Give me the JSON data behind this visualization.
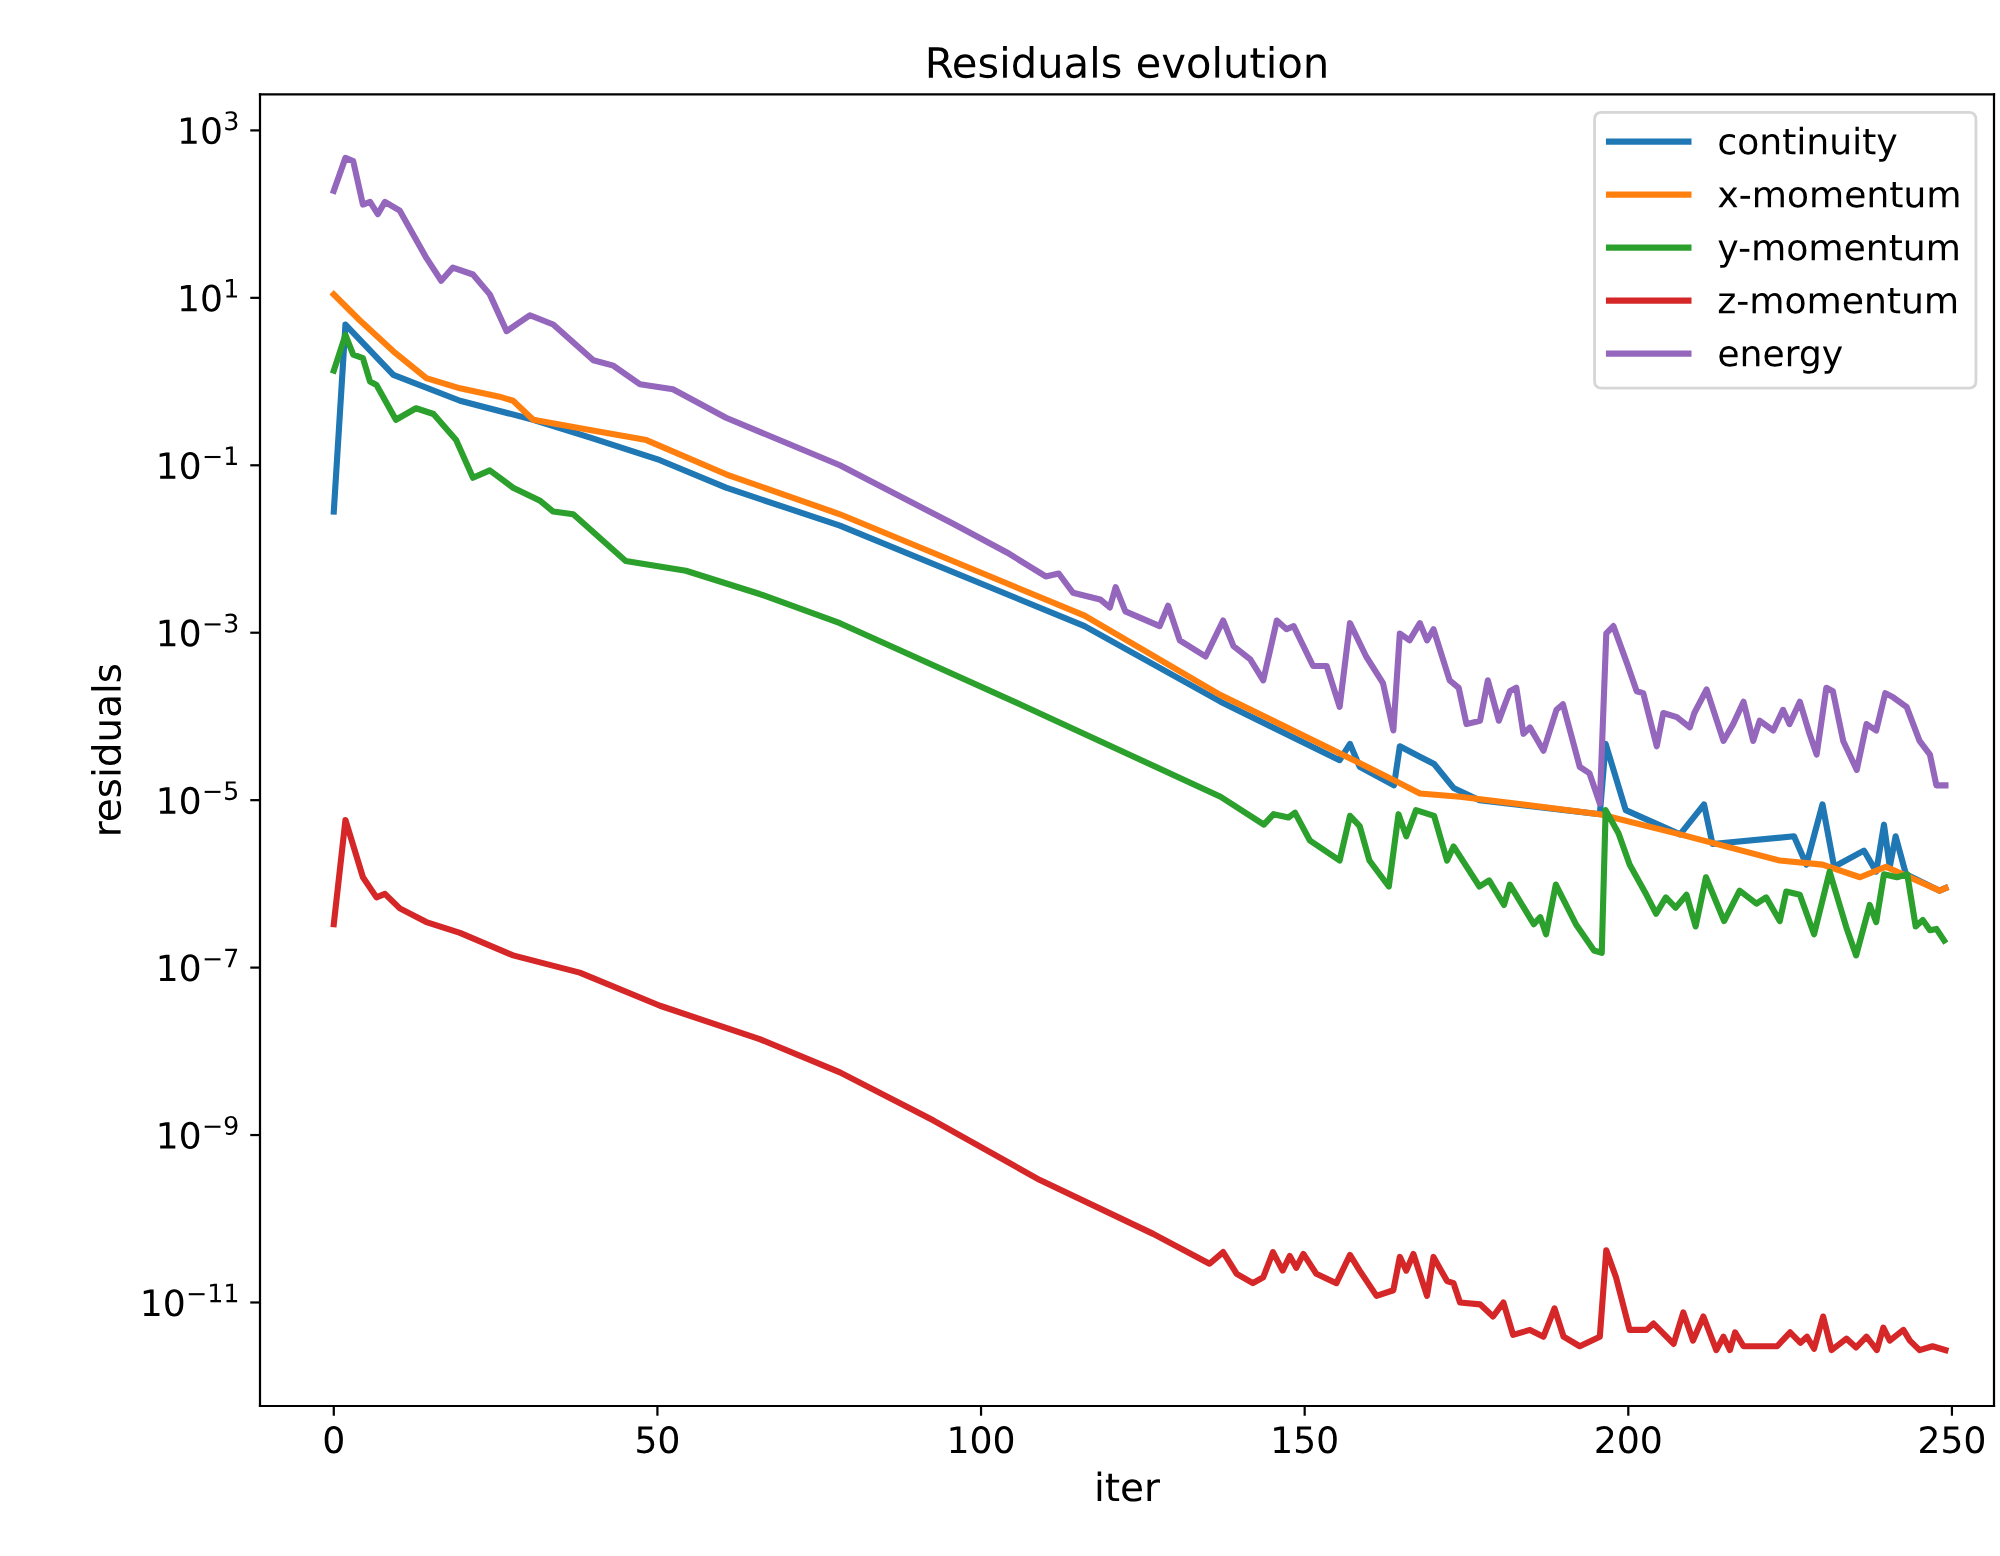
{
  "chart_data": {
    "type": "line",
    "title": "Residuals evolution",
    "xlabel": "iter",
    "ylabel": "residuals",
    "log": "y",
    "legend": "top right",
    "grid": false,
    "xlim": [
      -11.4,
      256.5
    ],
    "xticks": [
      0,
      50,
      100,
      150,
      200,
      250
    ],
    "ylim": [
      5.8e-13,
      2700
    ],
    "yticks": [
      {
        "value": 1000,
        "label": "10$^{3}$"
      },
      {
        "value": 10,
        "label": "10$^{1}$"
      },
      {
        "value": 0.1,
        "label": "10$^{−1}$"
      },
      {
        "value": 0.001,
        "label": "10$^{−3}$"
      },
      {
        "value": 1e-05,
        "label": "10$^{−5}$"
      },
      {
        "value": 1e-07,
        "label": "10$^{−7}$"
      },
      {
        "value": 1e-09,
        "label": "10$^{−9}$"
      },
      {
        "value": 1e-11,
        "label": "10$^{−11}$"
      }
    ],
    "series": [
      {
        "name": "continuity",
        "color": "#1f77b4",
        "x": [
          0,
          1.8,
          9.2,
          19.5,
          30.8,
          40,
          50.4,
          60.6,
          78.2,
          116,
          137,
          155.4,
          157,
          158.5,
          163.8,
          164.7,
          167.8,
          170,
          173,
          177,
          195.6,
          196.5,
          199.6,
          208,
          211.7,
          213,
          225.6,
          227.5,
          230,
          231.8,
          236.4,
          238.3,
          239.5,
          240.4,
          241.3,
          242.9,
          248.1,
          249
        ],
        "values": [
          0.028,
          4.8,
          1.2,
          0.59,
          0.35,
          0.21,
          0.115,
          0.054,
          0.019,
          0.0012,
          0.00015,
          3e-05,
          4.7e-05,
          2.5e-05,
          1.5e-05,
          4.4e-05,
          3.3e-05,
          2.7e-05,
          1.4e-05,
          1e-05,
          6.8e-06,
          4.7e-05,
          7.6e-06,
          3.9e-06,
          8.9e-06,
          3e-06,
          3.7e-06,
          1.7e-06,
          8.9e-06,
          1.6e-06,
          2.5e-06,
          1.4e-06,
          5.1e-06,
          1.6e-06,
          3.7e-06,
          1.3e-06,
          8.3e-07,
          8.9e-07
        ]
      },
      {
        "name": "x-momentum",
        "color": "#ff7f0e",
        "x": [
          0,
          4,
          9.2,
          14.3,
          19.5,
          25.6,
          27.7,
          30.8,
          40,
          48.3,
          60.6,
          78.2,
          116,
          137,
          157.6,
          164,
          167.8,
          174,
          195.6,
          208,
          223.4,
          230,
          235.8,
          239.8,
          248.1,
          249
        ],
        "values": [
          11,
          5.4,
          2.3,
          1.1,
          0.83,
          0.66,
          0.59,
          0.35,
          0.26,
          0.2,
          0.078,
          0.026,
          0.0016,
          0.00018,
          3e-05,
          1.7e-05,
          1.2e-05,
          1.1e-05,
          6.8e-06,
          3.9e-06,
          1.9e-06,
          1.7e-06,
          1.2e-06,
          1.6e-06,
          8.3e-07,
          8.9e-07
        ]
      },
      {
        "name": "y-momentum",
        "color": "#2ca02c",
        "x": [
          0,
          1.8,
          3,
          4.5,
          5.6,
          6.6,
          9.6,
          12.7,
          15.4,
          18.9,
          21.5,
          24.1,
          27.7,
          31.8,
          33.9,
          37,
          45.1,
          54.4,
          65.8,
          78.2,
          106,
          137,
          143.7,
          145.2,
          147.5,
          148.5,
          150.8,
          155.4,
          157,
          158.5,
          160,
          163,
          164.5,
          165.7,
          167.2,
          170,
          172,
          173,
          177,
          178.5,
          180.8,
          181.7,
          185.4,
          186.4,
          187.3,
          188.8,
          191.9,
          194.7,
          195.9,
          196.5,
          198.5,
          200.2,
          202.8,
          204.3,
          205.8,
          207.3,
          209,
          210.4,
          212,
          214.8,
          217.2,
          219.8,
          221.3,
          223.4,
          224.4,
          226.5,
          228.7,
          231.1,
          233.7,
          235.2,
          237.3,
          238.3,
          239.5,
          241.5,
          243.1,
          244.4,
          245.5,
          246.6,
          247.6,
          248.8
        ],
        "values": [
          1.35,
          3.6,
          2.1,
          1.9,
          1.0,
          0.91,
          0.35,
          0.48,
          0.41,
          0.2,
          0.071,
          0.087,
          0.054,
          0.038,
          0.028,
          0.026,
          0.0072,
          0.0055,
          0.0029,
          0.0013,
          0.00014,
          1.1e-05,
          5.1e-06,
          6.8e-06,
          6.2e-06,
          7.1e-06,
          3.3e-06,
          1.9e-06,
          6.5e-06,
          4.9e-06,
          1.9e-06,
          9.3e-07,
          6.8e-06,
          3.7e-06,
          7.6e-06,
          6.5e-06,
          1.9e-06,
          2.8e-06,
          9.3e-07,
          1.1e-06,
          5.6e-07,
          9.8e-07,
          3.3e-07,
          4e-07,
          2.5e-07,
          9.8e-07,
          3.3e-07,
          1.6e-07,
          1.5e-07,
          7.6e-06,
          4e-06,
          1.7e-06,
          7.4e-07,
          4.4e-07,
          6.9e-07,
          5.2e-07,
          7.4e-07,
          3.1e-07,
          1.2e-06,
          3.6e-07,
          8.3e-07,
          5.8e-07,
          6.9e-07,
          3.6e-07,
          8.1e-07,
          7.4e-07,
          2.5e-07,
          1.4e-06,
          3e-07,
          1.4e-07,
          5.6e-07,
          3.5e-07,
          1.3e-06,
          1.2e-06,
          1.3e-06,
          3.1e-07,
          3.7e-07,
          2.8e-07,
          2.9e-07,
          2.1e-07
        ]
      },
      {
        "name": "z-momentum",
        "color": "#d62728",
        "x": [
          0,
          1.8,
          4.5,
          6.6,
          7.9,
          10.2,
          14.3,
          19.5,
          27.7,
          38,
          50.4,
          65.8,
          78.2,
          92.6,
          109.1,
          126.6,
          135.3,
          137.4,
          139.5,
          142,
          143.6,
          145.1,
          146.6,
          147.7,
          148.7,
          149.8,
          151.8,
          154.9,
          157,
          158.5,
          161.1,
          163.7,
          164.7,
          165.7,
          166.8,
          168.9,
          169.9,
          172,
          173,
          174,
          177.1,
          179.1,
          180.7,
          182.2,
          184.8,
          186.9,
          188.6,
          190,
          192.5,
          195.6,
          196.6,
          198.1,
          200.2,
          202.8,
          203.9,
          207,
          208.5,
          210,
          211.6,
          213.6,
          214.7,
          215.7,
          216.5,
          217.8,
          223,
          225,
          226.6,
          227.6,
          228.7,
          230.1,
          231.4,
          233.7,
          235.2,
          236.8,
          238.4,
          239.4,
          240.4,
          242.5,
          243.5,
          245,
          247,
          249
        ],
        "values": [
          3.3e-07,
          5.8e-06,
          1.2e-06,
          6.9e-07,
          7.6e-07,
          5.1e-07,
          3.5e-07,
          2.6e-07,
          1.4e-07,
          8.7e-08,
          3.5e-08,
          1.4e-08,
          5.6e-09,
          1.5e-09,
          2.9e-10,
          6.6e-11,
          2.9e-11,
          4e-11,
          2.2e-11,
          1.7e-11,
          2e-11,
          4e-11,
          2.4e-11,
          3.6e-11,
          2.6e-11,
          3.8e-11,
          2.2e-11,
          1.7e-11,
          3.7e-11,
          2.4e-11,
          1.2e-11,
          1.4e-11,
          3.5e-11,
          2.4e-11,
          3.8e-11,
          1.2e-11,
          3.5e-11,
          1.8e-11,
          1.7e-11,
          1e-11,
          9.5e-12,
          6.8e-12,
          1e-11,
          4.1e-12,
          4.7e-12,
          3.9e-12,
          8.5e-12,
          3.9e-12,
          3e-12,
          3.9e-12,
          4.2e-11,
          2e-11,
          4.7e-12,
          4.7e-12,
          5.6e-12,
          3.2e-12,
          7.6e-12,
          3.5e-12,
          6.8e-12,
          2.7e-12,
          3.9e-12,
          2.7e-12,
          4.4e-12,
          3e-12,
          3e-12,
          4.4e-12,
          3.3e-12,
          3.9e-12,
          2.8e-12,
          6.8e-12,
          2.7e-12,
          3.7e-12,
          2.9e-12,
          3.9e-12,
          2.7e-12,
          5e-12,
          3.5e-12,
          4.7e-12,
          3.5e-12,
          2.7e-12,
          3e-12,
          2.7e-12
        ]
      },
      {
        "name": "energy",
        "color": "#9467bd",
        "x": [
          0,
          1.8,
          3,
          4.5,
          5.6,
          6.8,
          7.9,
          10.2,
          14.3,
          16.6,
          18.4,
          21.5,
          24.1,
          26.7,
          30.3,
          33.9,
          40.1,
          43.2,
          47.3,
          52.4,
          60.6,
          78.2,
          95.7,
          104,
          110,
          112,
          114.2,
          118.4,
          119.9,
          120.8,
          122.3,
          127.6,
          128.9,
          130.7,
          134.7,
          137.4,
          139,
          141.6,
          143.6,
          145.7,
          147.2,
          148.3,
          151.3,
          153.4,
          155.4,
          157,
          159.5,
          162.1,
          163.7,
          164.7,
          166.2,
          167.8,
          168.9,
          169.9,
          172.4,
          173.8,
          175,
          177.1,
          178.3,
          180,
          181.7,
          182.7,
          183.8,
          184.8,
          186.9,
          188.9,
          189.9,
          192.5,
          194,
          195.6,
          196.6,
          197.7,
          199.8,
          201.3,
          202.3,
          204.4,
          205.4,
          207.5,
          209.5,
          210.2,
          212.1,
          214.7,
          216.2,
          217.8,
          219.3,
          220.3,
          222.4,
          223.9,
          224.9,
          226.5,
          228,
          229.1,
          230.6,
          231.6,
          233.2,
          235.3,
          236.8,
          238.3,
          239.7,
          240.9,
          243,
          245,
          246.6,
          247.6,
          249
        ],
        "values": [
          190,
          470,
          430,
          130,
          140,
          100,
          140,
          110,
          30,
          16,
          23,
          19,
          11,
          4.0,
          6.2,
          4.8,
          1.8,
          1.55,
          0.93,
          0.81,
          0.37,
          0.1,
          0.02,
          0.0091,
          0.0047,
          0.0051,
          0.003,
          0.0025,
          0.002,
          0.0035,
          0.0018,
          0.0012,
          0.0021,
          0.00081,
          0.00052,
          0.0014,
          0.00069,
          0.00048,
          0.00027,
          0.0014,
          0.0011,
          0.0012,
          0.0004,
          0.0004,
          0.00013,
          0.0013,
          0.00052,
          0.00025,
          6.8e-05,
          0.00098,
          0.00081,
          0.0013,
          0.00081,
          0.0011,
          0.00027,
          0.00022,
          8.1e-05,
          8.9e-05,
          0.00027,
          8.9e-05,
          0.0002,
          0.00022,
          6.2e-05,
          7.4e-05,
          3.9e-05,
          0.00012,
          0.00014,
          2.5e-05,
          2.1e-05,
          9.1e-06,
          0.00098,
          0.0012,
          0.00043,
          0.0002,
          0.00019,
          4.4e-05,
          0.00011,
          9.8e-05,
          7.4e-05,
          0.00011,
          0.00021,
          5.1e-05,
          8.1e-05,
          0.00015,
          5.1e-05,
          8.9e-05,
          6.8e-05,
          0.00012,
          8.1e-05,
          0.00015,
          6.2e-05,
          3.5e-05,
          0.00022,
          0.0002,
          5.1e-05,
          2.3e-05,
          8.1e-05,
          6.8e-05,
          0.00019,
          0.00017,
          0.00013,
          5.1e-05,
          3.5e-05,
          1.5e-05,
          1.5e-05
        ]
      }
    ]
  }
}
